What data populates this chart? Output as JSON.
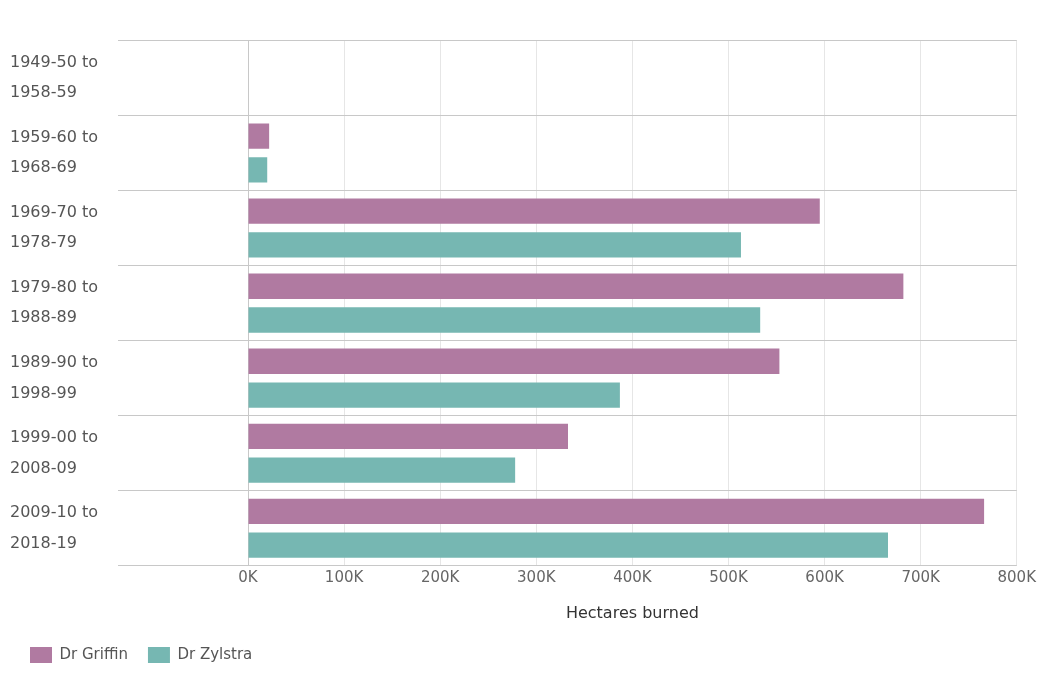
{
  "chart_data": {
    "type": "bar",
    "orientation": "horizontal",
    "xlabel": "Hectares burned",
    "categories": [
      "1949-50 to 1958-59",
      "1959-60 to 1968-69",
      "1969-70 to 1978-79",
      "1979-80 to 1988-89",
      "1989-90 to 1998-99",
      "1999-00 to 2008-09",
      "2009-10 to 2018-19"
    ],
    "series": [
      {
        "name": "Dr Griffin",
        "color": "#b07aa1",
        "values": [
          0,
          22000,
          595000,
          682000,
          553000,
          333000,
          766000
        ]
      },
      {
        "name": "Dr Zylstra",
        "color": "#76b7b2",
        "values": [
          0,
          20000,
          513000,
          533000,
          387000,
          278000,
          666000
        ]
      }
    ],
    "xlim": [
      0,
      800000
    ],
    "xticks": [
      {
        "value": 0,
        "label": "0K"
      },
      {
        "value": 100000,
        "label": "100K"
      },
      {
        "value": 200000,
        "label": "200K"
      },
      {
        "value": 300000,
        "label": "300K"
      },
      {
        "value": 400000,
        "label": "400K"
      },
      {
        "value": 500000,
        "label": "500K"
      },
      {
        "value": 600000,
        "label": "600K"
      },
      {
        "value": 700000,
        "label": "700K"
      },
      {
        "value": 800000,
        "label": "800K"
      }
    ],
    "grid": true,
    "legend": "bottom left"
  }
}
